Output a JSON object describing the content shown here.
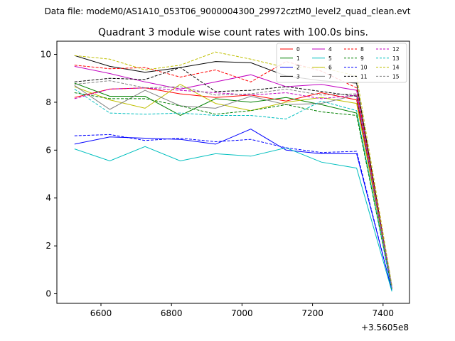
{
  "header": {
    "file_label": "Data file: modeM0/AS1A10_053T06_9000004300_29972cztM0_level2_quad_clean.evt"
  },
  "chart_data": {
    "type": "line",
    "title": "Quadrant 3 module wise count rates with 100.0s bins.",
    "xlabel": "",
    "ylabel": "",
    "x_offset_label": "+3.5605e8",
    "x": [
      6525,
      6625,
      6725,
      6825,
      6925,
      7025,
      7125,
      7225,
      7325,
      7425
    ],
    "xlim": [
      6475,
      7475
    ],
    "ylim": [
      -0.4,
      10.55
    ],
    "x_ticks": [
      6600,
      6800,
      7000,
      7200,
      7400
    ],
    "y_ticks": [
      0,
      2,
      4,
      6,
      8,
      10
    ],
    "legend": {
      "position": "top-right",
      "columns": 4
    },
    "series": [
      {
        "name": "0",
        "color": "#ff0000",
        "dash": "solid",
        "values": [
          8.2,
          8.55,
          8.6,
          8.35,
          8.2,
          8.3,
          8.05,
          8.4,
          8.1,
          0.25
        ]
      },
      {
        "name": "1",
        "color": "#008000",
        "dash": "solid",
        "values": [
          8.8,
          8.25,
          8.25,
          7.45,
          8.15,
          8.0,
          8.2,
          7.9,
          7.55,
          0.2
        ]
      },
      {
        "name": "2",
        "color": "#0000ff",
        "dash": "solid",
        "values": [
          6.25,
          6.55,
          6.5,
          6.45,
          6.25,
          6.88,
          6.0,
          5.85,
          5.85,
          0.15
        ]
      },
      {
        "name": "3",
        "color": "#000000",
        "dash": "solid",
        "values": [
          9.95,
          9.5,
          9.25,
          9.45,
          9.7,
          9.65,
          9.1,
          8.9,
          8.8,
          0.25
        ]
      },
      {
        "name": "4",
        "color": "#c000c0",
        "dash": "solid",
        "values": [
          9.5,
          9.2,
          8.85,
          8.55,
          8.85,
          9.15,
          8.65,
          8.75,
          8.5,
          0.25
        ]
      },
      {
        "name": "5",
        "color": "#00bfbf",
        "dash": "solid",
        "values": [
          6.05,
          5.55,
          6.15,
          5.55,
          5.85,
          5.75,
          6.1,
          5.5,
          5.25,
          0.1
        ]
      },
      {
        "name": "6",
        "color": "#bfbf00",
        "dash": "solid",
        "values": [
          8.65,
          8.1,
          7.75,
          8.75,
          7.95,
          7.65,
          8.0,
          8.2,
          7.95,
          0.25
        ]
      },
      {
        "name": "7",
        "color": "#808080",
        "dash": "solid",
        "values": [
          8.7,
          7.7,
          8.5,
          7.85,
          7.75,
          8.25,
          7.9,
          7.95,
          8.3,
          0.2
        ]
      },
      {
        "name": "8",
        "color": "#ff0000",
        "dash": "dashed",
        "values": [
          9.55,
          9.4,
          9.45,
          9.05,
          9.35,
          8.85,
          9.7,
          9.3,
          8.6,
          0.3
        ]
      },
      {
        "name": "9",
        "color": "#008000",
        "dash": "dashed",
        "values": [
          8.4,
          8.15,
          8.15,
          7.85,
          7.5,
          7.65,
          7.9,
          7.6,
          7.45,
          0.2
        ]
      },
      {
        "name": "10",
        "color": "#0000ff",
        "dash": "dashed",
        "values": [
          6.6,
          6.65,
          6.4,
          6.5,
          6.35,
          6.45,
          6.1,
          5.9,
          5.95,
          0.15
        ]
      },
      {
        "name": "11",
        "color": "#000000",
        "dash": "dashed",
        "values": [
          8.85,
          9.0,
          8.95,
          9.45,
          8.45,
          8.5,
          8.65,
          8.45,
          8.25,
          0.3
        ]
      },
      {
        "name": "12",
        "color": "#c000c0",
        "dash": "dashed",
        "values": [
          8.15,
          8.55,
          8.6,
          8.5,
          8.4,
          8.3,
          8.4,
          8.15,
          8.3,
          0.25
        ]
      },
      {
        "name": "13",
        "color": "#00bfbf",
        "dash": "dashed",
        "values": [
          8.55,
          7.55,
          7.5,
          7.55,
          7.45,
          7.45,
          7.3,
          8.05,
          7.65,
          0.15
        ]
      },
      {
        "name": "14",
        "color": "#bfbf00",
        "dash": "dashed",
        "values": [
          9.95,
          9.8,
          9.35,
          9.55,
          10.1,
          9.8,
          9.45,
          9.45,
          9.1,
          0.35
        ]
      },
      {
        "name": "15",
        "color": "#808080",
        "dash": "dashed",
        "values": [
          8.75,
          8.9,
          8.6,
          8.65,
          8.3,
          8.35,
          8.55,
          8.3,
          8.35,
          0.3
        ]
      }
    ]
  }
}
